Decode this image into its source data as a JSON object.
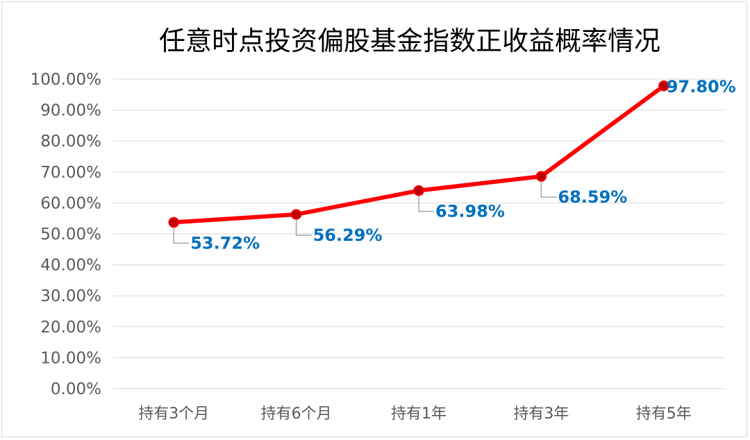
{
  "chart_data": {
    "type": "line",
    "title": "任意时点投资偏股基金指数正收益概率情况",
    "categories": [
      "持有3个月",
      "持有6个月",
      "持有1年",
      "持有3年",
      "持有5年"
    ],
    "series": [
      {
        "values": [
          53.72,
          56.29,
          63.98,
          68.59,
          97.8
        ],
        "data_labels": [
          "53.72%",
          "56.29%",
          "63.98%",
          "68.59%",
          "97.80%"
        ]
      }
    ],
    "y_ticks": [
      "0.00%",
      "10.00%",
      "20.00%",
      "30.00%",
      "40.00%",
      "50.00%",
      "60.00%",
      "70.00%",
      "80.00%",
      "90.00%",
      "100.00%"
    ],
    "ylim": [
      0,
      100
    ],
    "grid": true,
    "legend": "none",
    "colors": {
      "line": "#ff0000",
      "marker": "#c00000",
      "data_label": "#0070c0",
      "grid": "#d9d9d9",
      "tick_text": "#595959"
    }
  }
}
